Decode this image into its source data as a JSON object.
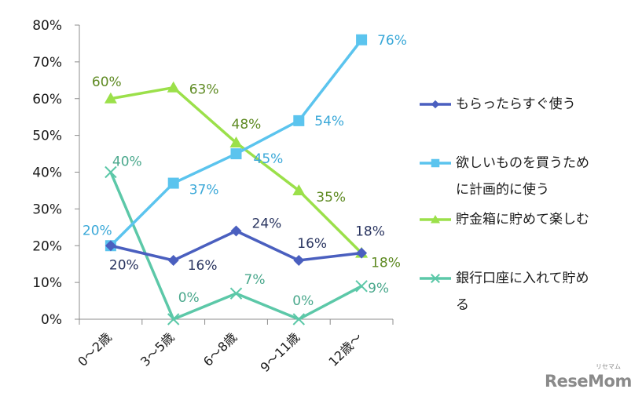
{
  "chart_data": {
    "type": "line",
    "title": "",
    "xlabel": "",
    "ylabel": "",
    "ylim": [
      0,
      80
    ],
    "yticks": [
      "0%",
      "10%",
      "20%",
      "30%",
      "40%",
      "50%",
      "60%",
      "70%",
      "80%"
    ],
    "ytick_values": [
      0,
      10,
      20,
      30,
      40,
      50,
      60,
      70,
      80
    ],
    "categories": [
      "0〜2歳",
      "3〜5歳",
      "6〜8歳",
      "9〜11歳",
      "12歳〜"
    ],
    "grid": false,
    "legend_position": "right",
    "series": [
      {
        "name": "もらったらすぐ使う",
        "values": [
          20,
          16,
          24,
          16,
          18
        ],
        "labels": [
          "20%",
          "16%",
          "24%",
          "16%",
          "18%"
        ],
        "color": "#4a5fbf",
        "label_color": "#2a3560",
        "marker": "diamond"
      },
      {
        "name": "欲しいものを買うために計画的に使う",
        "values": [
          20,
          37,
          45,
          54,
          76
        ],
        "labels": [
          "20%",
          "37%",
          "45%",
          "54%",
          "76%"
        ],
        "color": "#5bc4ee",
        "label_color": "#3aa8d8",
        "marker": "square"
      },
      {
        "name": "貯金箱に貯めて楽しむ",
        "values": [
          60,
          63,
          48,
          35,
          18
        ],
        "labels": [
          "60%",
          "63%",
          "48%",
          "35%",
          "18%"
        ],
        "color": "#9be04a",
        "label_color": "#5e8a22",
        "marker": "triangle"
      },
      {
        "name": "銀行口座に入れて貯める",
        "values": [
          40,
          0,
          7,
          0,
          9
        ],
        "labels": [
          "40%",
          "0%",
          "7%",
          "0%",
          "9%"
        ],
        "color": "#5cc8a8",
        "label_color": "#4aa88c",
        "marker": "x"
      }
    ]
  },
  "legend": {
    "items": [
      {
        "line1": "もらったらすぐ使う",
        "line2": ""
      },
      {
        "line1": "欲しいものを買うため",
        "line2": "に計画的に使う"
      },
      {
        "line1": "貯金箱に貯めて楽しむ",
        "line2": ""
      },
      {
        "line1": "銀行口座に入れて貯め",
        "line2": "る"
      }
    ]
  },
  "watermark": {
    "text": "ReseMom",
    "kana": "リセマム"
  }
}
